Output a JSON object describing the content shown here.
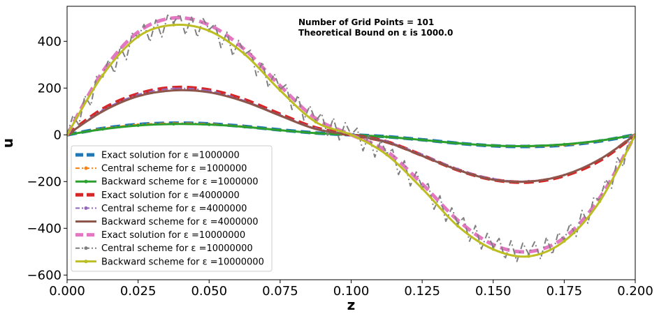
{
  "chart_data": {
    "type": "line",
    "xlabel": "z",
    "ylabel": "u",
    "xlim": [
      0.0,
      0.2
    ],
    "ylim": [
      -620,
      550
    ],
    "xticks": [
      0.0,
      0.025,
      0.05,
      0.075,
      0.1,
      0.125,
      0.15,
      0.175,
      0.2
    ],
    "xtick_labels": [
      "0.000",
      "0.025",
      "0.050",
      "0.075",
      "0.100",
      "0.125",
      "0.150",
      "0.175",
      "0.200"
    ],
    "yticks": [
      -600,
      -400,
      -200,
      0,
      200,
      400
    ],
    "ytick_labels": [
      "−600",
      "−400",
      "−200",
      "0",
      "200",
      "400"
    ],
    "grid": false,
    "legend_position": "lower-left",
    "annotations": [
      "Number of Grid Points = 101",
      "Theoretical Bound on ε is 1000.0"
    ],
    "x": [
      0.0,
      0.0125,
      0.025,
      0.0375,
      0.05,
      0.0625,
      0.075,
      0.0875,
      0.1,
      0.1125,
      0.125,
      0.1375,
      0.15,
      0.1625,
      0.175,
      0.1875,
      0.2
    ],
    "series": [
      {
        "name": "Exact solution for ε =1000000",
        "color": "#1f77b4",
        "style": "dashed",
        "values": [
          0,
          27,
          44,
          50,
          47,
          36,
          21,
          8,
          0,
          -8,
          -21,
          -36,
          -47,
          -50,
          -44,
          -27,
          0
        ]
      },
      {
        "name": "Central scheme for ε =1000000",
        "color": "#ff7f0e",
        "style": "dashdot",
        "marker": "star",
        "values": [
          0,
          27,
          44,
          50,
          47,
          36,
          21,
          8,
          0,
          -8,
          -21,
          -36,
          -47,
          -50,
          -44,
          -27,
          0
        ]
      },
      {
        "name": "Backward scheme for ε =1000000",
        "color": "#2ca02c",
        "style": "solid",
        "marker": "circle",
        "values": [
          0,
          24,
          40,
          46,
          44,
          34,
          20,
          7,
          0,
          -9,
          -22,
          -36,
          -46,
          -48,
          -41,
          -25,
          0
        ]
      },
      {
        "name": "Exact solution for ε =4000000",
        "color": "#d62728",
        "style": "dashed",
        "values": [
          0,
          110,
          175,
          202,
          192,
          150,
          88,
          30,
          0,
          -30,
          -88,
          -150,
          -192,
          -202,
          -175,
          -110,
          0
        ]
      },
      {
        "name": "Central scheme for ε =4000000",
        "color": "#9467bd",
        "style": "dashdot",
        "marker": "star",
        "values": [
          0,
          105,
          172,
          198,
          188,
          146,
          85,
          28,
          0,
          -28,
          -85,
          -146,
          -188,
          -198,
          -172,
          -105,
          0
        ]
      },
      {
        "name": "Backward scheme for ε =4000000",
        "color": "#8c564b",
        "style": "solid",
        "values": [
          0,
          100,
          165,
          190,
          182,
          142,
          82,
          25,
          0,
          -32,
          -90,
          -150,
          -192,
          -200,
          -172,
          -105,
          0
        ]
      },
      {
        "name": "Exact solution for ε =10000000",
        "color": "#e377c2",
        "style": "dashed",
        "values": [
          0,
          270,
          440,
          500,
          470,
          365,
          210,
          70,
          0,
          -70,
          -210,
          -365,
          -470,
          -500,
          -440,
          -270,
          0
        ]
      },
      {
        "name": "Central scheme for ε =10000000",
        "color": "#7f7f7f",
        "style": "dashdot",
        "marker": "star",
        "oscillating": true,
        "values": [
          0,
          250,
          420,
          480,
          450,
          345,
          195,
          60,
          0,
          -80,
          -225,
          -380,
          -480,
          -510,
          -450,
          -280,
          0
        ]
      },
      {
        "name": "Backward scheme for ε =10000000",
        "color": "#bcbd22",
        "style": "solid",
        "marker": "circle",
        "values": [
          0,
          255,
          420,
          470,
          445,
          345,
          190,
          55,
          0,
          -85,
          -230,
          -390,
          -490,
          -520,
          -455,
          -285,
          0
        ]
      }
    ]
  }
}
